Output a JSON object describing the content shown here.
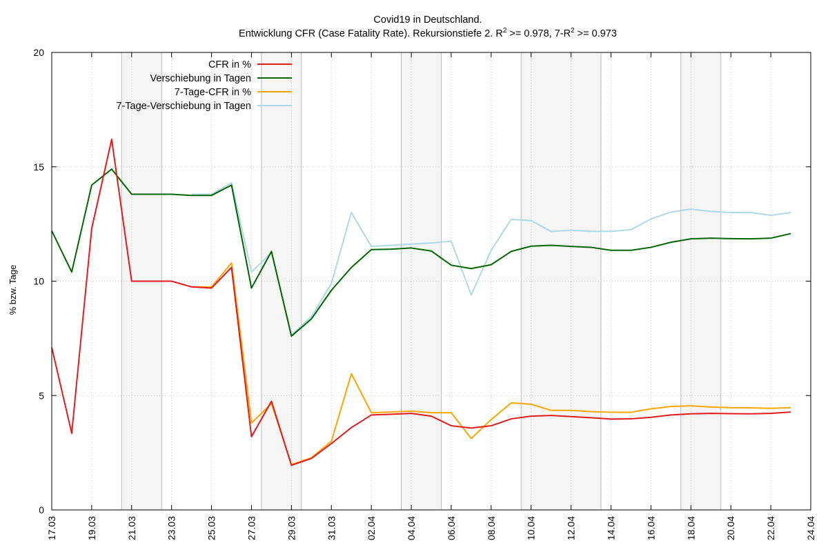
{
  "chart_data": {
    "type": "line",
    "title_line1": "Covid19 in Deutschland.",
    "title_line2_parts": {
      "prefix": "Entwicklung CFR (Case Fatality Rate). Rekursionstiefe 2. R",
      "sup1": "2",
      "mid": " >= 0.978, 7-R",
      "sup2": "2",
      "suffix": " >= 0.973"
    },
    "ylabel": "% bzw. Tage",
    "ylim": [
      0,
      20
    ],
    "y_ticks": [
      "0",
      "5",
      "10",
      "15",
      "20"
    ],
    "x_range": [
      "2020-03-17",
      "2020-04-24"
    ],
    "x_ticks": [
      "17.03",
      "19.03",
      "21.03",
      "23.03",
      "25.03",
      "27.03",
      "29.03",
      "31.03",
      "02.04",
      "04.04",
      "06.04",
      "08.04",
      "10.04",
      "12.04",
      "14.04",
      "16.04",
      "18.04",
      "20.04",
      "22.04",
      "24.04"
    ],
    "grid": true,
    "legend_position": "top-left",
    "weekend_bands": [
      [
        "2020-03-20T12:00",
        "2020-03-22T12:00"
      ],
      [
        "2020-03-27T12:00",
        "2020-03-29T12:00"
      ],
      [
        "2020-04-03T12:00",
        "2020-04-05T12:00"
      ],
      [
        "2020-04-09T12:00",
        "2020-04-13T12:00"
      ],
      [
        "2020-04-17T12:00",
        "2020-04-19T12:00"
      ]
    ],
    "series": [
      {
        "name": "CFR in %",
        "color": "#e31a1c",
        "points": [
          [
            "2020-03-17",
            7.1
          ],
          [
            "2020-03-18",
            3.35
          ],
          [
            "2020-03-19",
            12.3
          ],
          [
            "2020-03-20",
            16.2
          ],
          [
            "2020-03-21",
            10.0
          ],
          [
            "2020-03-22",
            10.0
          ],
          [
            "2020-03-23",
            10.0
          ],
          [
            "2020-03-24",
            9.75
          ],
          [
            "2020-03-25",
            9.7
          ],
          [
            "2020-03-26",
            10.6
          ],
          [
            "2020-03-27",
            3.2
          ],
          [
            "2020-03-28",
            4.75
          ],
          [
            "2020-03-29",
            1.95
          ],
          [
            "2020-03-30",
            2.25
          ],
          [
            "2020-03-31",
            2.9
          ],
          [
            "2020-04-01",
            3.6
          ],
          [
            "2020-04-02",
            4.15
          ],
          [
            "2020-04-03",
            4.18
          ],
          [
            "2020-04-04",
            4.22
          ],
          [
            "2020-04-05",
            4.1
          ],
          [
            "2020-04-06",
            3.68
          ],
          [
            "2020-04-07",
            3.58
          ],
          [
            "2020-04-08",
            3.68
          ],
          [
            "2020-04-09",
            3.98
          ],
          [
            "2020-04-10",
            4.1
          ],
          [
            "2020-04-11",
            4.13
          ],
          [
            "2020-04-12",
            4.08
          ],
          [
            "2020-04-13",
            4.03
          ],
          [
            "2020-04-14",
            3.97
          ],
          [
            "2020-04-15",
            3.98
          ],
          [
            "2020-04-16",
            4.05
          ],
          [
            "2020-04-17",
            4.15
          ],
          [
            "2020-04-18",
            4.2
          ],
          [
            "2020-04-19",
            4.22
          ],
          [
            "2020-04-20",
            4.21
          ],
          [
            "2020-04-21",
            4.2
          ],
          [
            "2020-04-22",
            4.22
          ],
          [
            "2020-04-23",
            4.28
          ]
        ]
      },
      {
        "name": "Verschiebung in Tagen",
        "color": "#006400",
        "points": [
          [
            "2020-03-17",
            12.2
          ],
          [
            "2020-03-18",
            10.4
          ],
          [
            "2020-03-19",
            14.2
          ],
          [
            "2020-03-20",
            14.9
          ],
          [
            "2020-03-21",
            13.8
          ],
          [
            "2020-03-22",
            13.8
          ],
          [
            "2020-03-23",
            13.8
          ],
          [
            "2020-03-24",
            13.75
          ],
          [
            "2020-03-25",
            13.75
          ],
          [
            "2020-03-26",
            14.2
          ],
          [
            "2020-03-27",
            9.7
          ],
          [
            "2020-03-28",
            11.3
          ],
          [
            "2020-03-29",
            7.6
          ],
          [
            "2020-03-30",
            8.35
          ],
          [
            "2020-03-31",
            9.6
          ],
          [
            "2020-04-01",
            10.6
          ],
          [
            "2020-04-02",
            11.38
          ],
          [
            "2020-04-03",
            11.4
          ],
          [
            "2020-04-04",
            11.45
          ],
          [
            "2020-04-05",
            11.32
          ],
          [
            "2020-04-06",
            10.7
          ],
          [
            "2020-04-07",
            10.55
          ],
          [
            "2020-04-08",
            10.72
          ],
          [
            "2020-04-09",
            11.3
          ],
          [
            "2020-04-10",
            11.53
          ],
          [
            "2020-04-11",
            11.57
          ],
          [
            "2020-04-12",
            11.52
          ],
          [
            "2020-04-13",
            11.48
          ],
          [
            "2020-04-14",
            11.35
          ],
          [
            "2020-04-15",
            11.35
          ],
          [
            "2020-04-16",
            11.48
          ],
          [
            "2020-04-17",
            11.7
          ],
          [
            "2020-04-18",
            11.85
          ],
          [
            "2020-04-19",
            11.88
          ],
          [
            "2020-04-20",
            11.86
          ],
          [
            "2020-04-21",
            11.85
          ],
          [
            "2020-04-22",
            11.88
          ],
          [
            "2020-04-23",
            12.08
          ]
        ]
      },
      {
        "name": "7-Tage-CFR in %",
        "color": "#ffa500",
        "points": [
          [
            "2020-03-24",
            9.75
          ],
          [
            "2020-03-25",
            9.75
          ],
          [
            "2020-03-26",
            10.8
          ],
          [
            "2020-03-27",
            3.8
          ],
          [
            "2020-03-28",
            4.65
          ],
          [
            "2020-03-29",
            1.98
          ],
          [
            "2020-03-30",
            2.28
          ],
          [
            "2020-03-31",
            3.0
          ],
          [
            "2020-04-01",
            5.95
          ],
          [
            "2020-04-02",
            4.25
          ],
          [
            "2020-04-03",
            4.28
          ],
          [
            "2020-04-04",
            4.32
          ],
          [
            "2020-04-05",
            4.25
          ],
          [
            "2020-04-06",
            4.25
          ],
          [
            "2020-04-07",
            3.12
          ],
          [
            "2020-04-08",
            3.95
          ],
          [
            "2020-04-09",
            4.68
          ],
          [
            "2020-04-10",
            4.62
          ],
          [
            "2020-04-11",
            4.35
          ],
          [
            "2020-04-12",
            4.35
          ],
          [
            "2020-04-13",
            4.3
          ],
          [
            "2020-04-14",
            4.27
          ],
          [
            "2020-04-15",
            4.27
          ],
          [
            "2020-04-16",
            4.42
          ],
          [
            "2020-04-17",
            4.52
          ],
          [
            "2020-04-18",
            4.55
          ],
          [
            "2020-04-19",
            4.5
          ],
          [
            "2020-04-20",
            4.47
          ],
          [
            "2020-04-21",
            4.46
          ],
          [
            "2020-04-22",
            4.44
          ],
          [
            "2020-04-23",
            4.47
          ]
        ]
      },
      {
        "name": "7-Tage-Verschiebung in Tagen",
        "color": "#add8e6",
        "points": [
          [
            "2020-03-24",
            13.8
          ],
          [
            "2020-03-25",
            13.8
          ],
          [
            "2020-03-26",
            14.3
          ],
          [
            "2020-03-27",
            10.4
          ],
          [
            "2020-03-28",
            11.25
          ],
          [
            "2020-03-29",
            7.65
          ],
          [
            "2020-03-30",
            8.45
          ],
          [
            "2020-03-31",
            9.9
          ],
          [
            "2020-04-01",
            13.0
          ],
          [
            "2020-04-02",
            11.52
          ],
          [
            "2020-04-03",
            11.57
          ],
          [
            "2020-04-04",
            11.62
          ],
          [
            "2020-04-05",
            11.67
          ],
          [
            "2020-04-06",
            11.75
          ],
          [
            "2020-04-07",
            9.4
          ],
          [
            "2020-04-08",
            11.35
          ],
          [
            "2020-04-09",
            12.7
          ],
          [
            "2020-04-10",
            12.65
          ],
          [
            "2020-04-11",
            12.17
          ],
          [
            "2020-04-12",
            12.23
          ],
          [
            "2020-04-13",
            12.18
          ],
          [
            "2020-04-14",
            12.18
          ],
          [
            "2020-04-15",
            12.25
          ],
          [
            "2020-04-16",
            12.72
          ],
          [
            "2020-04-17",
            13.02
          ],
          [
            "2020-04-18",
            13.15
          ],
          [
            "2020-04-19",
            13.05
          ],
          [
            "2020-04-20",
            13.0
          ],
          [
            "2020-04-21",
            13.0
          ],
          [
            "2020-04-22",
            12.88
          ],
          [
            "2020-04-23",
            13.0
          ]
        ]
      }
    ]
  }
}
